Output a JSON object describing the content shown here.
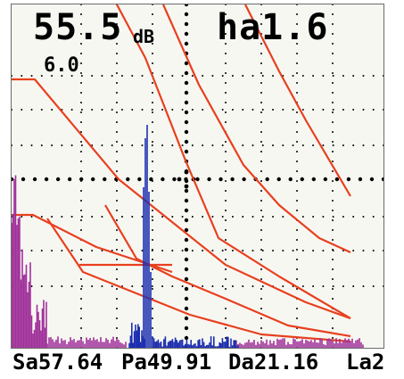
{
  "header": {
    "gain_value": "55.5",
    "gain_unit": "dB",
    "height_readout": "ha1.6",
    "step_value": "6.0"
  },
  "status": {
    "sa": "Sa57.64",
    "pa": "Pa49.91",
    "da": "Da21.16",
    "la": "La2"
  },
  "colors": {
    "screen_bg": "#f7f7f2",
    "curve": "#e8401f",
    "echo_primary": "#1c2fb0",
    "echo_noise": "#a0309a",
    "grid": "#000000"
  }
}
